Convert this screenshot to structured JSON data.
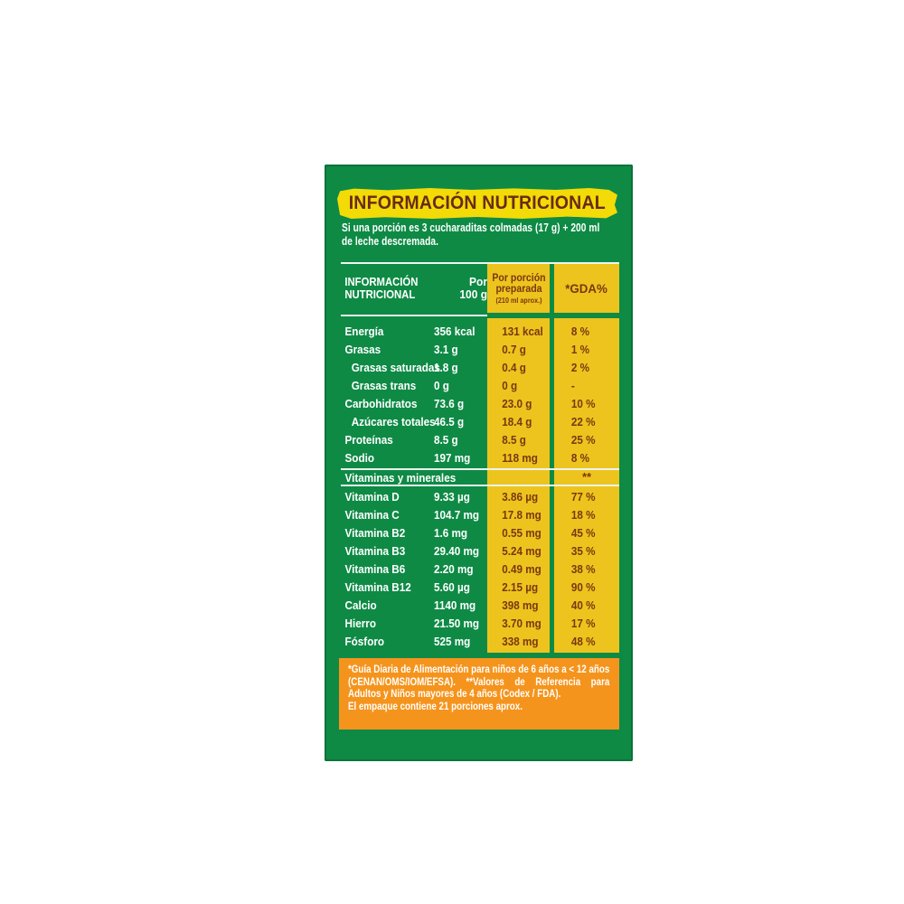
{
  "panel": {
    "title": "INFORMACIÓN NUTRICIONAL",
    "serving_note": "Si una porción es 3 cucharaditas colmadas (17 g) + 200 ml de leche descremada.",
    "colors": {
      "panel_green": "#0E8A45",
      "title_yellow": "#F2DB06",
      "column_yellow": "#EDC41D",
      "text_brown": "#7A3711",
      "title_brown": "#6B2A15",
      "footnote_orange": "#F5941D",
      "text_white": "#FFFFFF"
    }
  },
  "table": {
    "header": {
      "col1": "INFORMACIÓN NUTRICIONAL",
      "col2": "Por 100 g",
      "col3": "Por porción preparada",
      "col3_sub": "(210 ml aprox.)",
      "col4": "*GDA%"
    },
    "rows": [
      {
        "name": "Energía",
        "per100": "356 kcal",
        "portion": "131 kcal",
        "gda": "8 %"
      },
      {
        "name": "Grasas",
        "per100": "3.1 g",
        "portion": "0.7 g",
        "gda": "1 %"
      },
      {
        "name": "Grasas saturadas",
        "per100": "1.8 g",
        "portion": "0.4 g",
        "gda": "2 %",
        "indent": true
      },
      {
        "name": "Grasas trans",
        "per100": "0 g",
        "portion": "0 g",
        "gda": "-",
        "indent": true
      },
      {
        "name": "Carbohidratos",
        "per100": "73.6 g",
        "portion": "23.0 g",
        "gda": "10 %"
      },
      {
        "name": "Azúcares totales",
        "per100": "46.5 g",
        "portion": "18.4 g",
        "gda": "22 %",
        "indent": true
      },
      {
        "name": "Proteínas",
        "per100": "8.5 g",
        "portion": "8.5 g",
        "gda": "25 %"
      },
      {
        "name": "Sodio",
        "per100": "197 mg",
        "portion": "118 mg",
        "gda": "8 %"
      }
    ],
    "section": {
      "label": "Vitaminas y minerales",
      "gda": "**"
    },
    "vitamin_rows": [
      {
        "name": "Vitamina D",
        "per100": "9.33 µg",
        "portion": "3.86 µg",
        "gda": "77 %"
      },
      {
        "name": "Vitamina C",
        "per100": "104.7 mg",
        "portion": "17.8 mg",
        "gda": "18 %"
      },
      {
        "name": "Vitamina B2",
        "per100": "1.6 mg",
        "portion": "0.55 mg",
        "gda": "45 %"
      },
      {
        "name": "Vitamina B3",
        "per100": "29.40 mg",
        "portion": "5.24 mg",
        "gda": "35 %"
      },
      {
        "name": "Vitamina B6",
        "per100": "2.20 mg",
        "portion": "0.49 mg",
        "gda": "38 %"
      },
      {
        "name": "Vitamina B12",
        "per100": "5.60 µg",
        "portion": "2.15 µg",
        "gda": "90 %"
      },
      {
        "name": "Calcio",
        "per100": "1140 mg",
        "portion": "398 mg",
        "gda": "40 %"
      },
      {
        "name": "Hierro",
        "per100": "21.50 mg",
        "portion": "3.70 mg",
        "gda": "17 %"
      },
      {
        "name": "Fósforo",
        "per100": "525 mg",
        "portion": "338 mg",
        "gda": "48 %"
      }
    ]
  },
  "footer": {
    "note": "*Guía Diaria de Alimentación para niños de 6 años a < 12 años (CENAN/OMS/IOM/EFSA). **Valores de Referencia para Adultos y Niños mayores de 4 años (Codex / FDA).",
    "servings": "El empaque contiene 21 porciones aprox."
  }
}
